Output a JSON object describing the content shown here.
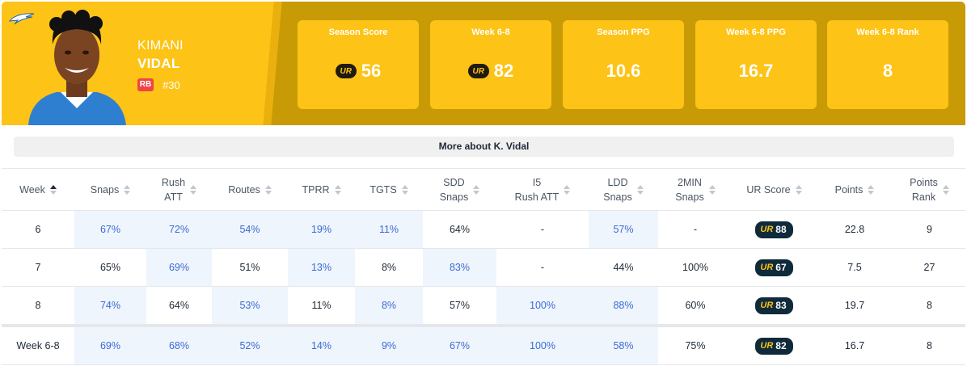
{
  "player": {
    "first_name": "KIMANI",
    "last_name": "VIDAL",
    "position": "RB",
    "jersey": "#30",
    "team_logo_icon": "chargers-bolt-icon"
  },
  "stat_cards": [
    {
      "label": "Season Score",
      "value": "56",
      "ur_icon": true
    },
    {
      "label": "Week 6-8",
      "value": "82",
      "ur_icon": true
    },
    {
      "label": "Season PPG",
      "value": "10.6",
      "ur_icon": false
    },
    {
      "label": "Week 6-8 PPG",
      "value": "16.7",
      "ur_icon": false
    },
    {
      "label": "Week 6-8 Rank",
      "value": "8",
      "ur_icon": false
    }
  ],
  "ur_label": "UR",
  "more_about": "More about K. Vidal",
  "columns": [
    "Week",
    "Snaps",
    "Rush\nATT",
    "Routes",
    "TPRR",
    "TGTS",
    "SDD\nSnaps",
    "I5\nRush ATT",
    "LDD\nSnaps",
    "2MIN\nSnaps",
    "UR Score",
    "Points",
    "Points\nRank"
  ],
  "rows": [
    {
      "week": "6",
      "cells": [
        "67%",
        "72%",
        "54%",
        "19%",
        "11%",
        "64%",
        "-",
        "57%",
        "-"
      ],
      "ur_score": "88",
      "points": "22.8",
      "rank": "9"
    },
    {
      "week": "7",
      "cells": [
        "65%",
        "69%",
        "51%",
        "13%",
        "8%",
        "83%",
        "-",
        "44%",
        "100%"
      ],
      "ur_score": "67",
      "points": "7.5",
      "rank": "27"
    },
    {
      "week": "8",
      "cells": [
        "74%",
        "64%",
        "53%",
        "11%",
        "8%",
        "57%",
        "100%",
        "88%",
        "60%"
      ],
      "ur_score": "83",
      "points": "19.7",
      "rank": "8"
    },
    {
      "week": "Week 6-8",
      "cells": [
        "69%",
        "68%",
        "52%",
        "14%",
        "9%",
        "67%",
        "100%",
        "58%",
        "75%"
      ],
      "ur_score": "82",
      "points": "16.7",
      "rank": "8"
    }
  ],
  "colors": {
    "accent_yellow": "#fdc316",
    "dark_gold": "#c89a05",
    "highlight_bg": "#eff5fd",
    "highlight_text": "#3b6bd3",
    "ur_pill": "#0f2a3a"
  }
}
